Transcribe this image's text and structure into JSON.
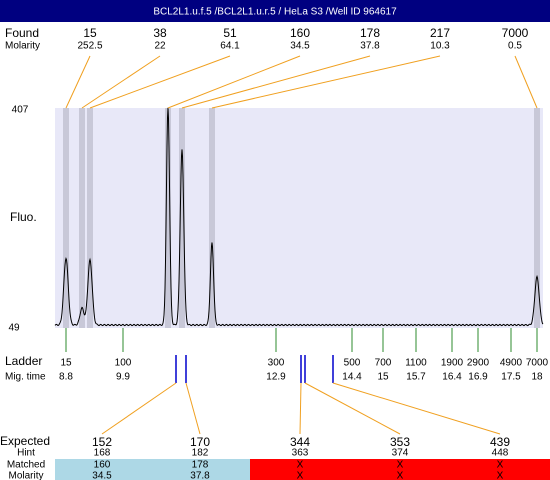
{
  "header": {
    "title": "BCL2L1.u.f.5 /BCL2L1.u.r.5 / HeLa S3 /Well ID 964617"
  },
  "found": {
    "label": "Found",
    "sublabel": "Molarity",
    "peaks": [
      {
        "size": "15",
        "molarity": "252.5"
      },
      {
        "size": "38",
        "molarity": "22"
      },
      {
        "size": "51",
        "molarity": "64.1"
      },
      {
        "size": "160",
        "molarity": "34.5"
      },
      {
        "size": "178",
        "molarity": "37.8"
      },
      {
        "size": "217",
        "molarity": "10.3"
      },
      {
        "size": "7000",
        "molarity": "0.5"
      }
    ]
  },
  "axis": {
    "label": "Fluo.",
    "top": "407",
    "bottom": "49"
  },
  "ladder": {
    "label": "Ladder",
    "sublabel": "Mig. time",
    "markers": [
      {
        "size": "15",
        "time": "8.8"
      },
      {
        "size": "100",
        "time": "9.9"
      },
      {
        "size": "300",
        "time": "12.9"
      },
      {
        "size": "500",
        "time": "14.4"
      },
      {
        "size": "700",
        "time": "15"
      },
      {
        "size": "1100",
        "time": "15.7"
      },
      {
        "size": "1900",
        "time": "16.4"
      },
      {
        "size": "2900",
        "time": "16.9"
      },
      {
        "size": "4900",
        "time": "17.5"
      },
      {
        "size": "7000",
        "time": "18"
      }
    ]
  },
  "expected": {
    "label": "Expected",
    "row_labels": [
      "Hint",
      "Matched",
      "Molarity"
    ],
    "columns": [
      {
        "expected": "152",
        "hint": "168",
        "matched": "160",
        "molarity": "34.5",
        "color": "#add8e6"
      },
      {
        "expected": "170",
        "hint": "182",
        "matched": "178",
        "molarity": "37.8",
        "color": "#add8e6"
      },
      {
        "expected": "344",
        "hint": "363",
        "matched": "X",
        "molarity": "X",
        "color": "#ff0000"
      },
      {
        "expected": "353",
        "hint": "374",
        "matched": "X",
        "molarity": "X",
        "color": "#ff0000"
      },
      {
        "expected": "439",
        "hint": "448",
        "matched": "X",
        "molarity": "X",
        "color": "#ff0000"
      }
    ]
  }
}
